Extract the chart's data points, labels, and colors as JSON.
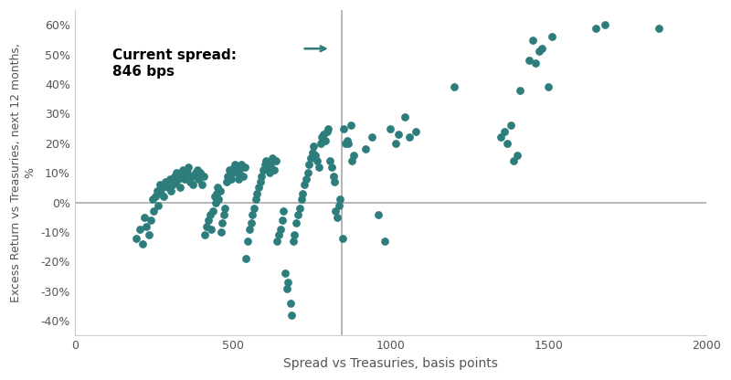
{
  "xlabel": "Spread vs Treasuries, basis points",
  "ylabel": "Excess Return vs Treasuries, next 12 months,\n%",
  "current_spread": 846,
  "annotation_text": "Current spread:\n846 bps",
  "dot_color": "#2e7d7d",
  "vline_color": "#aaaaaa",
  "hline_color": "#aaaaaa",
  "xlim": [
    0,
    2000
  ],
  "ylim": [
    -0.45,
    0.65
  ],
  "xticks": [
    0,
    500,
    1000,
    1500,
    2000
  ],
  "yticks": [
    -0.4,
    -0.3,
    -0.2,
    -0.1,
    0.0,
    0.1,
    0.2,
    0.3,
    0.4,
    0.5,
    0.6
  ],
  "ytick_labels": [
    "-40%",
    "-30%",
    "-20%",
    "-10%",
    "0%",
    "10%",
    "20%",
    "30%",
    "40%",
    "50%",
    "60%"
  ],
  "scatter_data": [
    [
      195,
      -0.12
    ],
    [
      205,
      -0.09
    ],
    [
      215,
      -0.14
    ],
    [
      220,
      -0.05
    ],
    [
      225,
      -0.08
    ],
    [
      235,
      -0.11
    ],
    [
      240,
      -0.06
    ],
    [
      245,
      0.01
    ],
    [
      250,
      -0.03
    ],
    [
      255,
      0.02
    ],
    [
      260,
      0.04
    ],
    [
      265,
      -0.01
    ],
    [
      268,
      0.06
    ],
    [
      272,
      0.03
    ],
    [
      278,
      0.05
    ],
    [
      282,
      0.02
    ],
    [
      288,
      0.07
    ],
    [
      295,
      0.05
    ],
    [
      300,
      0.08
    ],
    [
      305,
      0.04
    ],
    [
      310,
      0.06
    ],
    [
      315,
      0.09
    ],
    [
      318,
      0.07
    ],
    [
      322,
      0.1
    ],
    [
      328,
      0.08
    ],
    [
      332,
      0.05
    ],
    [
      338,
      0.09
    ],
    [
      342,
      0.11
    ],
    [
      348,
      0.08
    ],
    [
      355,
      0.1
    ],
    [
      360,
      0.12
    ],
    [
      365,
      0.07
    ],
    [
      370,
      0.09
    ],
    [
      375,
      0.06
    ],
    [
      382,
      0.1
    ],
    [
      388,
      0.11
    ],
    [
      392,
      0.08
    ],
    [
      398,
      0.1
    ],
    [
      403,
      0.06
    ],
    [
      408,
      0.09
    ],
    [
      412,
      -0.11
    ],
    [
      418,
      -0.08
    ],
    [
      422,
      -0.06
    ],
    [
      428,
      -0.04
    ],
    [
      432,
      -0.09
    ],
    [
      438,
      -0.03
    ],
    [
      442,
      0.02
    ],
    [
      445,
      0.0
    ],
    [
      448,
      0.03
    ],
    [
      452,
      0.05
    ],
    [
      455,
      0.01
    ],
    [
      460,
      0.04
    ],
    [
      462,
      -0.1
    ],
    [
      467,
      -0.07
    ],
    [
      472,
      -0.04
    ],
    [
      476,
      -0.02
    ],
    [
      480,
      0.07
    ],
    [
      485,
      0.09
    ],
    [
      490,
      0.11
    ],
    [
      495,
      0.08
    ],
    [
      498,
      0.1
    ],
    [
      503,
      0.12
    ],
    [
      508,
      0.13
    ],
    [
      512,
      0.1
    ],
    [
      518,
      0.08
    ],
    [
      522,
      0.11
    ],
    [
      528,
      0.13
    ],
    [
      533,
      0.09
    ],
    [
      538,
      0.12
    ],
    [
      542,
      -0.19
    ],
    [
      548,
      -0.13
    ],
    [
      552,
      -0.09
    ],
    [
      558,
      -0.07
    ],
    [
      562,
      -0.04
    ],
    [
      568,
      -0.02
    ],
    [
      572,
      0.01
    ],
    [
      577,
      0.03
    ],
    [
      582,
      0.05
    ],
    [
      587,
      0.07
    ],
    [
      592,
      0.09
    ],
    [
      596,
      0.11
    ],
    [
      601,
      0.13
    ],
    [
      606,
      0.14
    ],
    [
      611,
      0.12
    ],
    [
      617,
      0.1
    ],
    [
      621,
      0.13
    ],
    [
      626,
      0.15
    ],
    [
      631,
      0.11
    ],
    [
      636,
      0.14
    ],
    [
      641,
      -0.13
    ],
    [
      646,
      -0.11
    ],
    [
      652,
      -0.09
    ],
    [
      656,
      -0.06
    ],
    [
      661,
      -0.03
    ],
    [
      666,
      -0.24
    ],
    [
      672,
      -0.29
    ],
    [
      676,
      -0.27
    ],
    [
      682,
      -0.34
    ],
    [
      686,
      -0.38
    ],
    [
      691,
      -0.13
    ],
    [
      696,
      -0.11
    ],
    [
      701,
      -0.07
    ],
    [
      706,
      -0.04
    ],
    [
      711,
      -0.02
    ],
    [
      717,
      0.01
    ],
    [
      722,
      0.03
    ],
    [
      727,
      0.06
    ],
    [
      732,
      0.08
    ],
    [
      737,
      0.1
    ],
    [
      742,
      0.13
    ],
    [
      747,
      0.15
    ],
    [
      752,
      0.17
    ],
    [
      757,
      0.19
    ],
    [
      762,
      0.16
    ],
    [
      767,
      0.14
    ],
    [
      772,
      0.12
    ],
    [
      778,
      0.2
    ],
    [
      783,
      0.22
    ],
    [
      788,
      0.23
    ],
    [
      793,
      0.21
    ],
    [
      798,
      0.24
    ],
    [
      802,
      0.25
    ],
    [
      807,
      0.14
    ],
    [
      813,
      0.12
    ],
    [
      818,
      0.09
    ],
    [
      823,
      0.07
    ],
    [
      826,
      -0.03
    ],
    [
      831,
      -0.05
    ],
    [
      836,
      -0.01
    ],
    [
      841,
      0.01
    ],
    [
      847,
      -0.12
    ],
    [
      852,
      0.25
    ],
    [
      857,
      0.2
    ],
    [
      862,
      0.21
    ],
    [
      867,
      0.2
    ],
    [
      873,
      0.26
    ],
    [
      877,
      0.14
    ],
    [
      883,
      0.16
    ],
    [
      920,
      0.18
    ],
    [
      940,
      0.22
    ],
    [
      960,
      -0.04
    ],
    [
      980,
      -0.13
    ],
    [
      1000,
      0.25
    ],
    [
      1015,
      0.2
    ],
    [
      1025,
      0.23
    ],
    [
      1045,
      0.29
    ],
    [
      1060,
      0.22
    ],
    [
      1080,
      0.24
    ],
    [
      1200,
      0.39
    ],
    [
      1350,
      0.22
    ],
    [
      1360,
      0.24
    ],
    [
      1370,
      0.2
    ],
    [
      1380,
      0.26
    ],
    [
      1390,
      0.14
    ],
    [
      1400,
      0.16
    ],
    [
      1410,
      0.38
    ],
    [
      1440,
      0.48
    ],
    [
      1450,
      0.55
    ],
    [
      1460,
      0.47
    ],
    [
      1470,
      0.51
    ],
    [
      1480,
      0.52
    ],
    [
      1500,
      0.39
    ],
    [
      1510,
      0.56
    ],
    [
      1650,
      0.59
    ],
    [
      1680,
      0.6
    ],
    [
      1850,
      0.59
    ]
  ]
}
